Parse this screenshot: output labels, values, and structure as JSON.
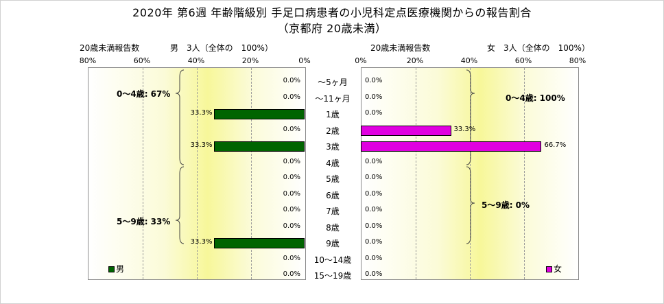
{
  "title": {
    "line1": "2020年 第6週 年齢階級別 手足口病患者の小児科定点医療機関からの報告割合",
    "line2": "（京都府 20歳未満）"
  },
  "left_header": {
    "label": "20歳未満報告数",
    "total": "男　3人（全体の　100%）"
  },
  "right_header": {
    "label": "20歳未満報告数",
    "total": "女　3人（全体の　100%）"
  },
  "left_ticks": [
    "80%",
    "60%",
    "40%",
    "20%",
    "0%"
  ],
  "right_ticks": [
    "0%",
    "20%",
    "40%",
    "60%",
    "80%"
  ],
  "left_legend": "男",
  "right_legend": "女",
  "left_groups": {
    "g1": "0～4歳: 67%",
    "g2": "5～9歳: 33%"
  },
  "right_groups": {
    "g1": "0～4歳: 100%",
    "g2": "5～9歳: 0%"
  },
  "colors": {
    "male": "#006400",
    "female": "#e000e0"
  },
  "chart_data": {
    "type": "bar",
    "orientation": "horizontal-population-pyramid",
    "categories": [
      "～5ヶ月",
      "～11ヶ月",
      "1歳",
      "2歳",
      "3歳",
      "4歳",
      "5歳",
      "6歳",
      "7歳",
      "8歳",
      "9歳",
      "10～14歳",
      "15～19歳"
    ],
    "series": [
      {
        "name": "男",
        "values": [
          0.0,
          0.0,
          33.3,
          0.0,
          33.3,
          0.0,
          0.0,
          0.0,
          0.0,
          0.0,
          33.3,
          0.0,
          0.0
        ],
        "labels": [
          "0.0%",
          "0.0%",
          "33.3%",
          "0.0%",
          "33.3%",
          "0.0%",
          "0.0%",
          "0.0%",
          "0.0%",
          "0.0%",
          "33.3%",
          "0.0%",
          "0.0%"
        ]
      },
      {
        "name": "女",
        "values": [
          0.0,
          0.0,
          0.0,
          33.3,
          66.7,
          0.0,
          0.0,
          0.0,
          0.0,
          0.0,
          0.0,
          0.0,
          0.0
        ],
        "labels": [
          "0.0%",
          "0.0%",
          "0.0%",
          "33.3%",
          "66.7%",
          "0.0%",
          "0.0%",
          "0.0%",
          "0.0%",
          "0.0%",
          "0.0%",
          "0.0%",
          "0.0%"
        ]
      }
    ],
    "xlim": [
      0,
      80
    ],
    "grid": true,
    "legend_position": "bottom"
  }
}
